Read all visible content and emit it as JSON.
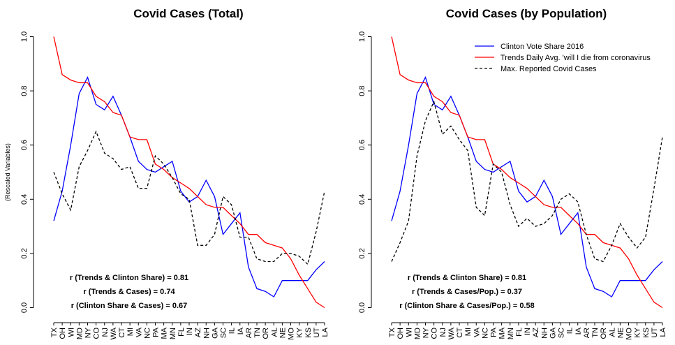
{
  "chart_data": [
    {
      "type": "line",
      "title": "Covid Cases (Total)",
      "y_label": "(Rescaled Variables)",
      "categories": [
        "TX",
        "OH",
        "WI",
        "MD",
        "NY",
        "CO",
        "NJ",
        "WA",
        "CT",
        "MI",
        "VA",
        "NC",
        "PA",
        "MA",
        "MN",
        "FL",
        "IN",
        "AZ",
        "NH",
        "GA",
        "SC",
        "IL",
        "IA",
        "AR",
        "TN",
        "OR",
        "AL",
        "NE",
        "MO",
        "KY",
        "KS",
        "UT",
        "LA"
      ],
      "ylim": [
        -0.04,
        1.04
      ],
      "yticks": [
        {
          "value": 0,
          "label": "0.0"
        },
        {
          "value": 0.2,
          "label": "0.2"
        },
        {
          "value": 0.4,
          "label": "0.4"
        },
        {
          "value": 0.6,
          "label": "0.6"
        },
        {
          "value": 0.8,
          "label": "0.8"
        },
        {
          "value": 1,
          "label": "1.0"
        }
      ],
      "series": [
        {
          "name": "Clinton Vote Share 2016",
          "color": "#0000ff",
          "dashed": false,
          "values": [
            0.32,
            0.43,
            0.6,
            0.79,
            0.85,
            0.75,
            0.73,
            0.78,
            0.71,
            0.63,
            0.54,
            0.51,
            0.5,
            0.52,
            0.54,
            0.43,
            0.39,
            0.41,
            0.47,
            0.41,
            0.27,
            0.31,
            0.35,
            0.15,
            0.07,
            0.06,
            0.04,
            0.1,
            0.1,
            0.1,
            0.1,
            0.14,
            0.17
          ]
        },
        {
          "name": "Trends Daily Avg. 'will I die from coronavirus",
          "color": "#ff0000",
          "dashed": false,
          "values": [
            1.0,
            0.86,
            0.84,
            0.83,
            0.83,
            0.78,
            0.76,
            0.72,
            0.71,
            0.63,
            0.62,
            0.62,
            0.53,
            0.51,
            0.48,
            0.46,
            0.44,
            0.41,
            0.38,
            0.37,
            0.37,
            0.34,
            0.31,
            0.27,
            0.27,
            0.24,
            0.23,
            0.22,
            0.18,
            0.12,
            0.07,
            0.02,
            0.0
          ]
        },
        {
          "name": "Max. Reported Covid Cases",
          "color": "#000000",
          "dashed": true,
          "values": [
            0.5,
            0.42,
            0.36,
            0.52,
            0.58,
            0.65,
            0.57,
            0.55,
            0.51,
            0.52,
            0.44,
            0.44,
            0.56,
            0.53,
            0.48,
            0.42,
            0.4,
            0.23,
            0.23,
            0.27,
            0.41,
            0.38,
            0.26,
            0.26,
            0.18,
            0.17,
            0.17,
            0.2,
            0.2,
            0.19,
            0.16,
            0.28,
            0.43
          ]
        }
      ],
      "annotations": [
        "r (Trends & Clinton Share) = 0.81",
        "r (Trends & Cases) = 0.74",
        "r (Clinton Share & Cases) = 0.67"
      ]
    },
    {
      "type": "line",
      "title": "Covid Cases (by Population)",
      "legend": "topright",
      "categories": [
        "TX",
        "OH",
        "WI",
        "MD",
        "NY",
        "CO",
        "NJ",
        "WA",
        "CT",
        "MI",
        "VA",
        "NC",
        "PA",
        "MA",
        "MN",
        "FL",
        "IN",
        "AZ",
        "NH",
        "GA",
        "SC",
        "IL",
        "IA",
        "AR",
        "TN",
        "OR",
        "AL",
        "NE",
        "MO",
        "KY",
        "KS",
        "UT",
        "LA"
      ],
      "ylim": [
        -0.04,
        1.04
      ],
      "yticks": [
        {
          "value": 0,
          "label": "0.0"
        },
        {
          "value": 0.2,
          "label": "0.2"
        },
        {
          "value": 0.4,
          "label": "0.4"
        },
        {
          "value": 0.6,
          "label": "0.6"
        },
        {
          "value": 0.8,
          "label": "0.8"
        },
        {
          "value": 1,
          "label": "1.0"
        }
      ],
      "series": [
        {
          "name": "Clinton Vote Share 2016",
          "color": "#0000ff",
          "dashed": false,
          "values": [
            0.32,
            0.43,
            0.6,
            0.79,
            0.85,
            0.75,
            0.73,
            0.78,
            0.71,
            0.63,
            0.54,
            0.51,
            0.5,
            0.52,
            0.54,
            0.43,
            0.39,
            0.41,
            0.47,
            0.41,
            0.27,
            0.31,
            0.35,
            0.15,
            0.07,
            0.06,
            0.04,
            0.1,
            0.1,
            0.1,
            0.1,
            0.14,
            0.17
          ]
        },
        {
          "name": "Trends Daily Avg. 'will I die from coronavirus",
          "color": "#ff0000",
          "dashed": false,
          "values": [
            1.0,
            0.86,
            0.84,
            0.83,
            0.83,
            0.78,
            0.76,
            0.72,
            0.71,
            0.63,
            0.62,
            0.62,
            0.53,
            0.51,
            0.48,
            0.46,
            0.44,
            0.41,
            0.38,
            0.37,
            0.37,
            0.34,
            0.31,
            0.27,
            0.27,
            0.24,
            0.23,
            0.22,
            0.18,
            0.12,
            0.07,
            0.02,
            0.0
          ]
        },
        {
          "name": "Max. Reported Covid Cases",
          "color": "#000000",
          "dashed": true,
          "values": [
            0.17,
            0.24,
            0.32,
            0.56,
            0.69,
            0.76,
            0.64,
            0.67,
            0.62,
            0.58,
            0.37,
            0.34,
            0.53,
            0.5,
            0.38,
            0.3,
            0.33,
            0.3,
            0.31,
            0.34,
            0.4,
            0.42,
            0.39,
            0.27,
            0.18,
            0.17,
            0.23,
            0.31,
            0.26,
            0.22,
            0.26,
            0.44,
            0.63
          ]
        }
      ],
      "annotations": [
        "r (Trends & Clinton Share) = 0.81",
        "r (Trends & Cases/Pop.) = 0.37",
        "r (Clinton Share & Cases/Pop.) = 0.58"
      ]
    }
  ]
}
